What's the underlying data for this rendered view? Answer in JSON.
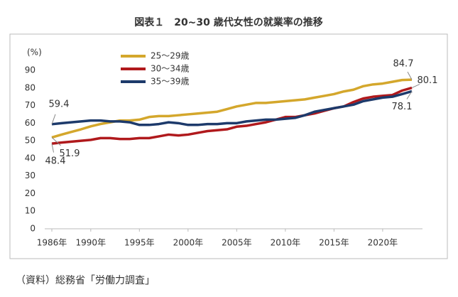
{
  "chart_data": {
    "type": "line",
    "title": "図表１　20~30 歳代女性の就業率の推移",
    "ylabel": "(%)",
    "source": "（資料）総務省「労働力調査」",
    "x": [
      1986,
      1987,
      1988,
      1989,
      1990,
      1991,
      1992,
      1993,
      1994,
      1995,
      1996,
      1997,
      1998,
      1999,
      2000,
      2001,
      2002,
      2003,
      2004,
      2005,
      2006,
      2007,
      2008,
      2009,
      2010,
      2011,
      2012,
      2013,
      2014,
      2015,
      2016,
      2017,
      2018,
      2019,
      2020,
      2021,
      2022,
      2023
    ],
    "xlim": [
      1986,
      2023
    ],
    "xticks": [
      {
        "value": 1986,
        "label": "1986年"
      },
      {
        "value": 1990,
        "label": "1990年"
      },
      {
        "value": 1995,
        "label": "1995年"
      },
      {
        "value": 2000,
        "label": "2000年"
      },
      {
        "value": 2005,
        "label": "2005年"
      },
      {
        "value": 2010,
        "label": "2010年"
      },
      {
        "value": 2015,
        "label": "2015年"
      },
      {
        "value": 2020,
        "label": "2020年"
      }
    ],
    "ylim": [
      0,
      90
    ],
    "yticks": [
      0,
      10,
      20,
      30,
      40,
      50,
      60,
      70,
      80,
      90
    ],
    "grid": false,
    "legend": "top",
    "series": [
      {
        "name": "25～29歳",
        "color": "#d4a72c",
        "values": [
          51.9,
          53.5,
          55,
          56.5,
          58.2,
          59.5,
          60.5,
          61.5,
          61.5,
          62,
          63.5,
          64,
          64,
          64.5,
          65,
          65.5,
          66,
          66.5,
          68,
          69.5,
          70.5,
          71.5,
          71.5,
          72,
          72.5,
          73,
          73.5,
          74.5,
          75.5,
          76.5,
          78,
          79,
          81,
          82,
          82.5,
          83.5,
          84.5,
          84.7
        ],
        "value_labels": [
          "51.9",
          null,
          null,
          null,
          null,
          null,
          null,
          null,
          null,
          null,
          null,
          null,
          null,
          null,
          null,
          null,
          null,
          null,
          null,
          null,
          null,
          null,
          null,
          null,
          null,
          null,
          null,
          null,
          null,
          null,
          null,
          null,
          null,
          null,
          null,
          null,
          null,
          "84.7"
        ]
      },
      {
        "name": "30～34歳",
        "color": "#b0191c",
        "values": [
          48.4,
          49,
          49.5,
          50,
          50.5,
          51.5,
          51.5,
          51,
          51,
          51.5,
          51.5,
          52.5,
          53.5,
          53,
          53.5,
          54.5,
          55.5,
          56,
          56.5,
          58,
          58.5,
          59.5,
          60.5,
          62,
          63.5,
          63.5,
          64.5,
          65.5,
          67,
          68.5,
          69.5,
          72,
          74,
          75,
          75.5,
          76,
          78.5,
          80.1
        ],
        "value_labels": [
          "48.4",
          null,
          null,
          null,
          null,
          null,
          null,
          null,
          null,
          null,
          null,
          null,
          null,
          null,
          null,
          null,
          null,
          null,
          null,
          null,
          null,
          null,
          null,
          null,
          null,
          null,
          null,
          null,
          null,
          null,
          null,
          null,
          null,
          null,
          null,
          null,
          null,
          "80.1"
        ]
      },
      {
        "name": "35～39歳",
        "color": "#1d3a6b",
        "values": [
          59.4,
          60,
          60.5,
          61,
          61.5,
          61.5,
          61,
          61,
          60.5,
          59,
          59,
          59.5,
          60.5,
          60,
          59,
          59,
          59.5,
          59.5,
          60,
          60,
          61,
          61.5,
          62,
          62,
          62.5,
          63,
          64.5,
          66.5,
          67.5,
          68.5,
          69.5,
          70.5,
          72.5,
          73.5,
          74.5,
          75,
          76.5,
          78.1
        ],
        "value_labels": [
          "59.4",
          null,
          null,
          null,
          null,
          null,
          null,
          null,
          null,
          null,
          null,
          null,
          null,
          null,
          null,
          null,
          null,
          null,
          null,
          null,
          null,
          null,
          null,
          null,
          null,
          null,
          null,
          null,
          null,
          null,
          null,
          null,
          null,
          null,
          null,
          null,
          null,
          "78.1"
        ]
      }
    ]
  }
}
